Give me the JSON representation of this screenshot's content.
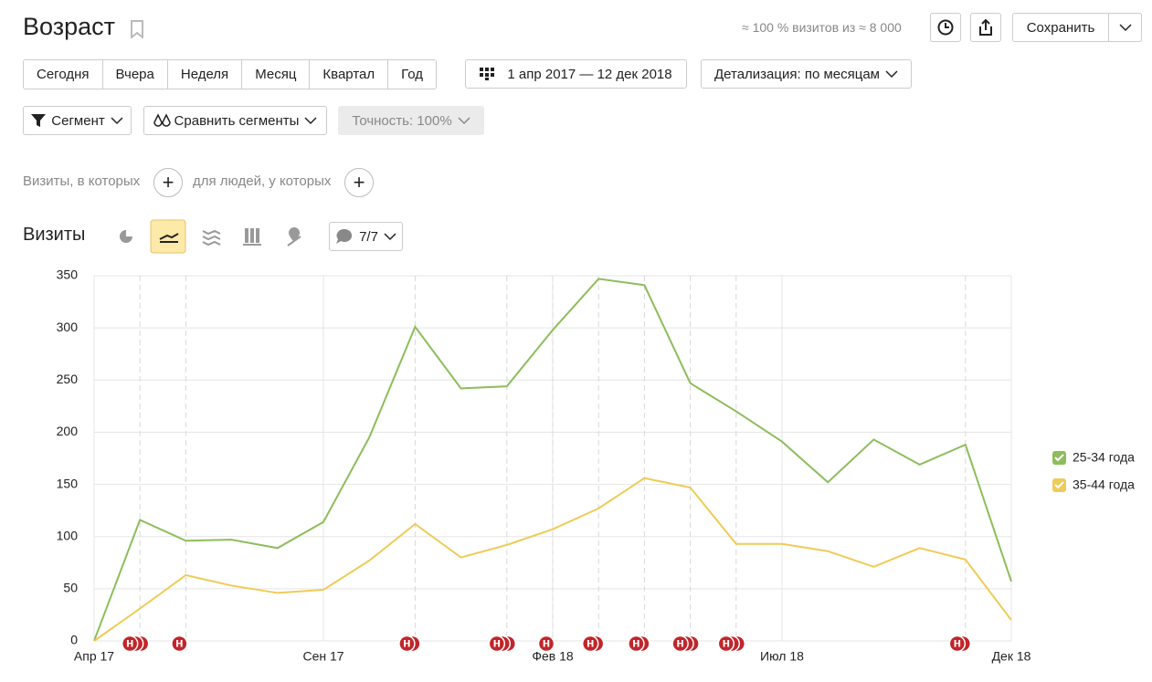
{
  "header": {
    "title": "Возраст",
    "coverage": "≈ 100 % визитов из ≈ 8 000",
    "save": "Сохранить"
  },
  "periods": [
    "Сегодня",
    "Вчера",
    "Неделя",
    "Месяц",
    "Квартал",
    "Год"
  ],
  "date_range": "1 апр 2017 — 12 дек 2018",
  "detail": "Детализация: по месяцам",
  "segment": "Сегмент",
  "compare": "Сравнить сегменты",
  "accuracy": "Точность: 100%",
  "filters": {
    "visits": "Визиты, в которых",
    "people": "для людей, у которых"
  },
  "metric": "Визиты",
  "annotations_toggle": "7/7",
  "chart_data": {
    "type": "line",
    "categories": [
      "Апр 17",
      null,
      null,
      null,
      null,
      "Сен 17",
      null,
      null,
      null,
      null,
      "Фев 18",
      null,
      null,
      null,
      null,
      "Июл 18",
      null,
      null,
      null,
      null,
      "Дек 18"
    ],
    "series": [
      {
        "name": "25-34 года",
        "color": "#8dbd5c",
        "values": [
          0,
          116,
          96,
          97,
          89,
          114,
          195,
          301,
          242,
          244,
          298,
          347,
          341,
          247,
          220,
          191,
          152,
          193,
          169,
          188,
          57
        ]
      },
      {
        "name": "35-44 года",
        "color": "#efcb57",
        "values": [
          0,
          31,
          63,
          53,
          46,
          49,
          77,
          112,
          80,
          92,
          107,
          127,
          156,
          147,
          93,
          93,
          86,
          71,
          89,
          78,
          20
        ]
      }
    ],
    "ylim": [
      0,
      350
    ],
    "yticks": [
      0,
      50,
      100,
      150,
      200,
      250,
      300,
      350
    ],
    "grid": true,
    "legend": "right",
    "annotations": [
      {
        "index": 1,
        "count": 3,
        "label": "н"
      },
      {
        "index": 2,
        "count": 1,
        "label": "н"
      },
      {
        "index": 7,
        "count": 2,
        "label": "н"
      },
      {
        "index": 9,
        "count": 3,
        "label": "н"
      },
      {
        "index": 10,
        "count": 1,
        "label": "н"
      },
      {
        "index": 11,
        "count": 2,
        "label": "н"
      },
      {
        "index": 12,
        "count": 2,
        "label": "н"
      },
      {
        "index": 13,
        "count": 3,
        "label": "н"
      },
      {
        "index": 14,
        "count": 3,
        "label": "н"
      },
      {
        "index": 19,
        "count": 2,
        "label": "н"
      }
    ]
  }
}
